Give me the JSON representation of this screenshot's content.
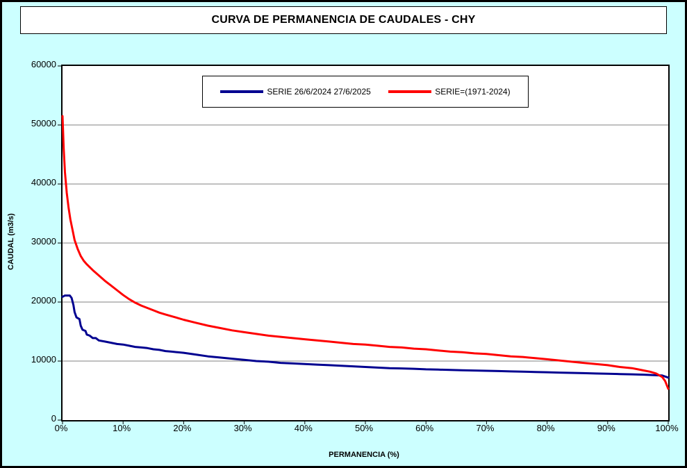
{
  "colors": {
    "page_background": "#CCFFFF",
    "plot_background": "#FFFFFF",
    "grid": "#808080",
    "axis": "#000000",
    "series_blue": "#000090",
    "series_red": "#FF0000"
  },
  "chart_data": {
    "type": "line",
    "title": "CURVA DE PERMANENCIA DE CAUDALES - CHY",
    "xlabel": "PERMANENCIA (%)",
    "ylabel": "CAUDAL (m3/s)",
    "xlim": [
      0,
      100
    ],
    "ylim": [
      0,
      60000
    ],
    "x_ticks": [
      0,
      10,
      20,
      30,
      40,
      50,
      60,
      70,
      80,
      90,
      100
    ],
    "x_tick_labels": [
      "0%",
      "10%",
      "20%",
      "30%",
      "40%",
      "50%",
      "60%",
      "70%",
      "80%",
      "90%",
      "100%"
    ],
    "y_ticks": [
      0,
      10000,
      20000,
      30000,
      40000,
      50000,
      60000
    ],
    "grid": "horizontal",
    "legend_position": "top-center",
    "series": [
      {
        "name": "SERIE 26/6/2024 27/6/2025",
        "color": "#000090",
        "points": [
          [
            0,
            20900
          ],
          [
            0.4,
            21100
          ],
          [
            1.2,
            21100
          ],
          [
            1.5,
            20700
          ],
          [
            1.8,
            19500
          ],
          [
            2.0,
            18300
          ],
          [
            2.3,
            17400
          ],
          [
            2.8,
            17100
          ],
          [
            3.0,
            16000
          ],
          [
            3.3,
            15300
          ],
          [
            3.8,
            15100
          ],
          [
            4.0,
            14500
          ],
          [
            4.5,
            14300
          ],
          [
            5.0,
            13900
          ],
          [
            5.5,
            13900
          ],
          [
            6,
            13500
          ],
          [
            7,
            13300
          ],
          [
            8,
            13100
          ],
          [
            9,
            12900
          ],
          [
            10,
            12800
          ],
          [
            11,
            12600
          ],
          [
            12,
            12400
          ],
          [
            13,
            12300
          ],
          [
            14,
            12200
          ],
          [
            15,
            12000
          ],
          [
            16,
            11900
          ],
          [
            17,
            11700
          ],
          [
            18,
            11600
          ],
          [
            19,
            11500
          ],
          [
            20,
            11400
          ],
          [
            22,
            11100
          ],
          [
            24,
            10800
          ],
          [
            26,
            10600
          ],
          [
            28,
            10400
          ],
          [
            30,
            10200
          ],
          [
            32,
            10000
          ],
          [
            34,
            9900
          ],
          [
            36,
            9700
          ],
          [
            38,
            9600
          ],
          [
            40,
            9500
          ],
          [
            42,
            9400
          ],
          [
            44,
            9300
          ],
          [
            46,
            9200
          ],
          [
            48,
            9100
          ],
          [
            50,
            9000
          ],
          [
            52,
            8900
          ],
          [
            54,
            8800
          ],
          [
            56,
            8750
          ],
          [
            58,
            8700
          ],
          [
            60,
            8600
          ],
          [
            62,
            8550
          ],
          [
            64,
            8500
          ],
          [
            66,
            8450
          ],
          [
            68,
            8400
          ],
          [
            70,
            8350
          ],
          [
            72,
            8300
          ],
          [
            74,
            8250
          ],
          [
            76,
            8200
          ],
          [
            78,
            8150
          ],
          [
            80,
            8100
          ],
          [
            82,
            8050
          ],
          [
            84,
            8000
          ],
          [
            86,
            7950
          ],
          [
            88,
            7900
          ],
          [
            90,
            7850
          ],
          [
            92,
            7800
          ],
          [
            94,
            7750
          ],
          [
            96,
            7700
          ],
          [
            98,
            7600
          ],
          [
            99,
            7550
          ],
          [
            100,
            7200
          ]
        ]
      },
      {
        "name": "SERIE=(1971-2024)",
        "color": "#FF0000",
        "points": [
          [
            0,
            51500
          ],
          [
            0.2,
            46000
          ],
          [
            0.4,
            42000
          ],
          [
            0.7,
            38500
          ],
          [
            1.0,
            36000
          ],
          [
            1.3,
            34000
          ],
          [
            1.7,
            32000
          ],
          [
            2.0,
            30500
          ],
          [
            2.5,
            29000
          ],
          [
            3.0,
            27800
          ],
          [
            3.5,
            27000
          ],
          [
            4.0,
            26400
          ],
          [
            5.0,
            25400
          ],
          [
            6.0,
            24500
          ],
          [
            7.0,
            23600
          ],
          [
            8.0,
            22800
          ],
          [
            9.0,
            22000
          ],
          [
            10,
            21200
          ],
          [
            11,
            20500
          ],
          [
            12,
            19900
          ],
          [
            13,
            19400
          ],
          [
            14,
            19000
          ],
          [
            15,
            18600
          ],
          [
            16,
            18200
          ],
          [
            17,
            17900
          ],
          [
            18,
            17600
          ],
          [
            19,
            17300
          ],
          [
            20,
            17000
          ],
          [
            22,
            16500
          ],
          [
            24,
            16000
          ],
          [
            26,
            15600
          ],
          [
            28,
            15200
          ],
          [
            30,
            14900
          ],
          [
            32,
            14600
          ],
          [
            34,
            14300
          ],
          [
            36,
            14100
          ],
          [
            38,
            13900
          ],
          [
            40,
            13700
          ],
          [
            42,
            13500
          ],
          [
            44,
            13300
          ],
          [
            46,
            13100
          ],
          [
            48,
            12900
          ],
          [
            50,
            12800
          ],
          [
            52,
            12600
          ],
          [
            54,
            12400
          ],
          [
            56,
            12300
          ],
          [
            58,
            12100
          ],
          [
            60,
            12000
          ],
          [
            62,
            11800
          ],
          [
            64,
            11600
          ],
          [
            66,
            11500
          ],
          [
            68,
            11300
          ],
          [
            70,
            11200
          ],
          [
            72,
            11000
          ],
          [
            74,
            10800
          ],
          [
            76,
            10700
          ],
          [
            78,
            10500
          ],
          [
            80,
            10300
          ],
          [
            82,
            10100
          ],
          [
            84,
            9900
          ],
          [
            86,
            9700
          ],
          [
            88,
            9500
          ],
          [
            90,
            9300
          ],
          [
            92,
            9000
          ],
          [
            94,
            8800
          ],
          [
            95,
            8600
          ],
          [
            96,
            8400
          ],
          [
            97,
            8200
          ],
          [
            98,
            7900
          ],
          [
            99,
            7300
          ],
          [
            99.5,
            6600
          ],
          [
            100,
            5300
          ]
        ]
      }
    ]
  }
}
